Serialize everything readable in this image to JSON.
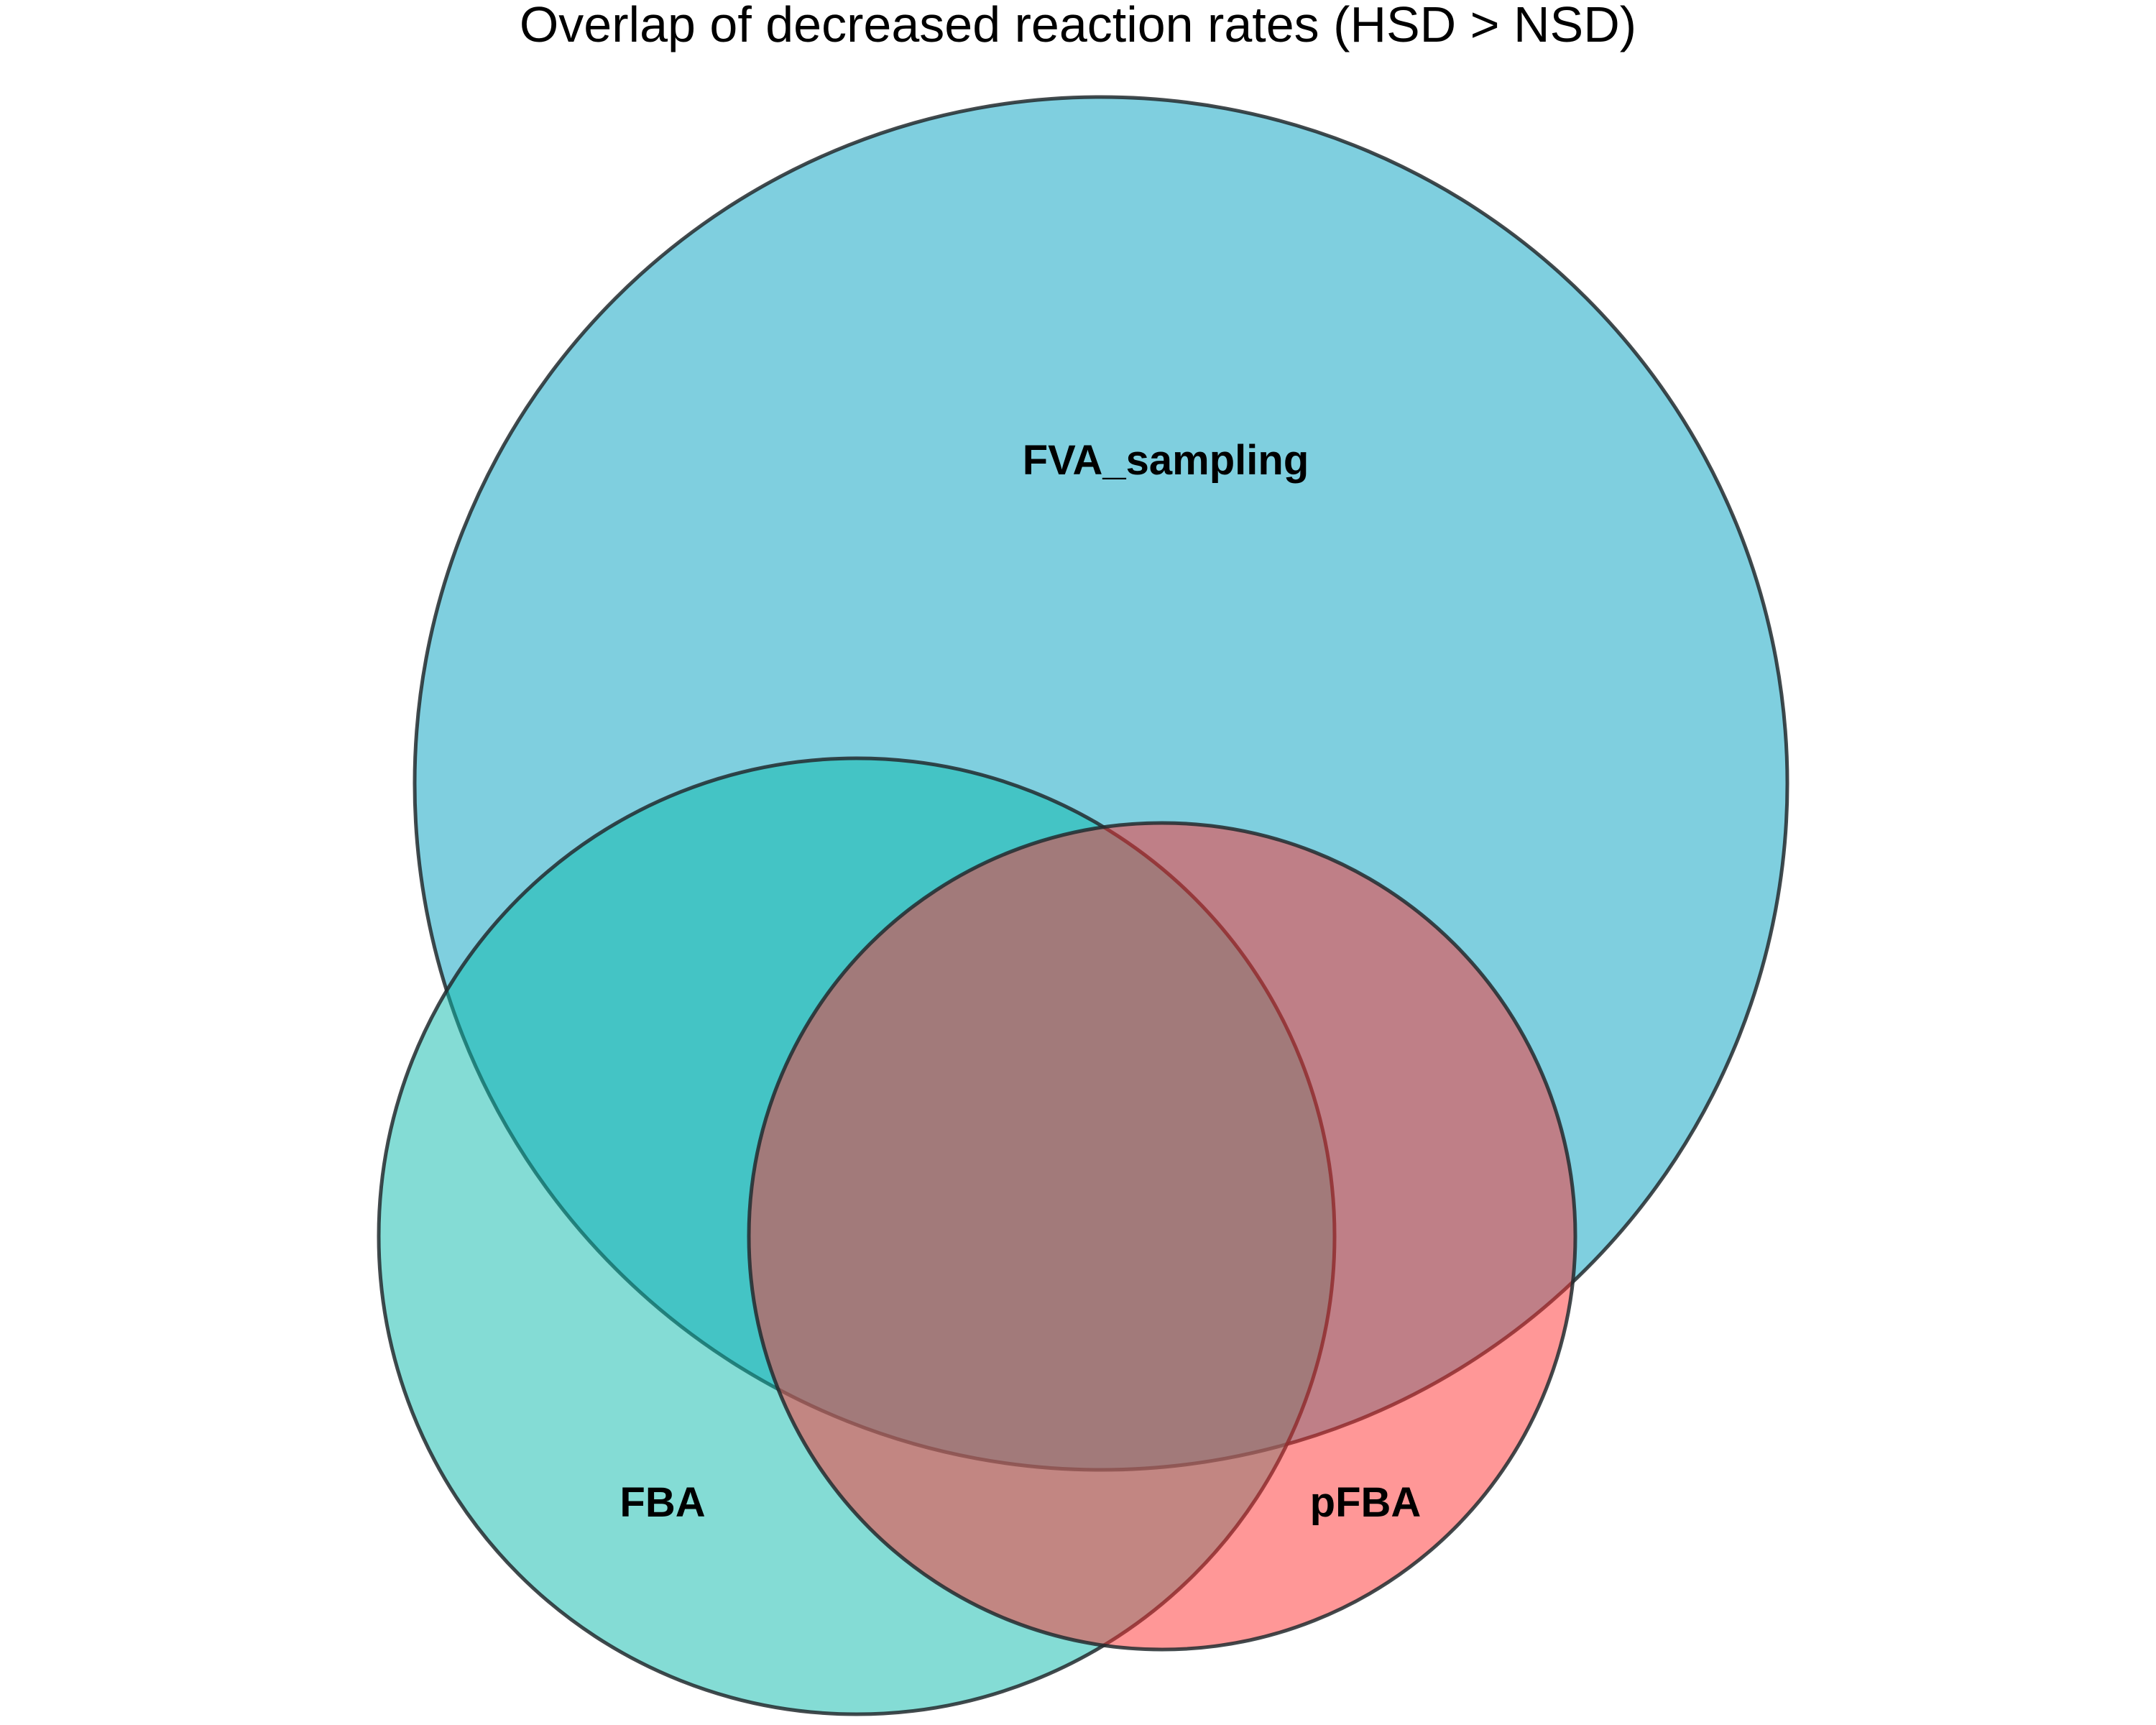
{
  "title": "Overlap of decreased reaction rates (HSD > NSD)",
  "sets": [
    {
      "id": "fva",
      "label": "FVA_sampling",
      "color": "#00a0c0"
    },
    {
      "id": "fba",
      "label": "FBA",
      "color": "#0abaac"
    },
    {
      "id": "pfba",
      "label": "pFBA",
      "color": "#ff3030"
    }
  ],
  "outline_color": "#222a2e"
}
